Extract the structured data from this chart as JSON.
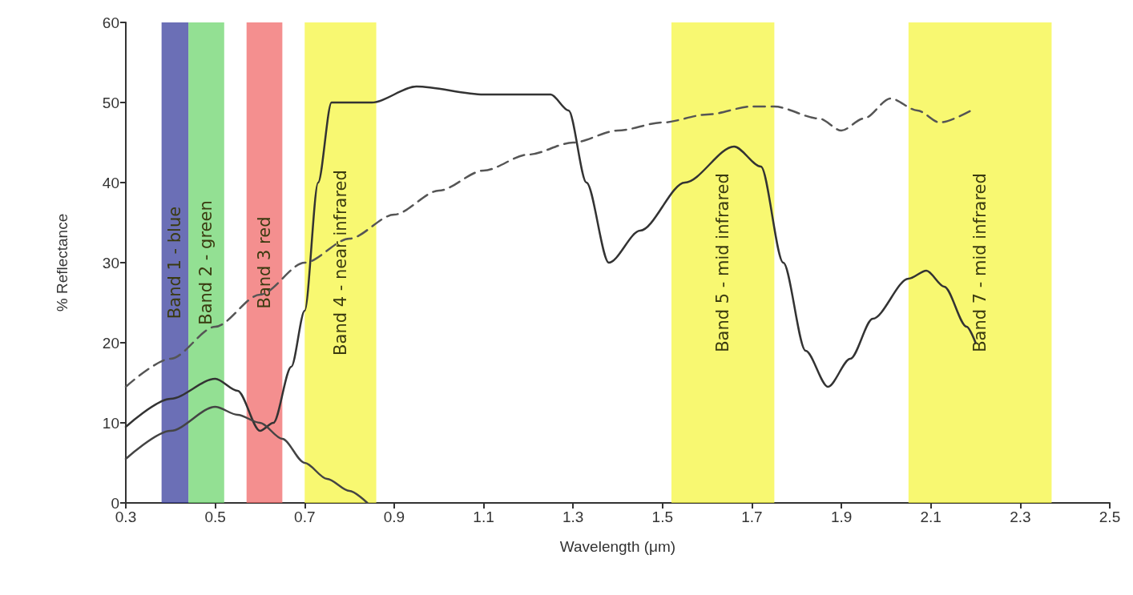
{
  "chart_data": {
    "type": "line",
    "xlabel": "Wavelength (μm)",
    "ylabel": "% Reflectance",
    "xlim": [
      0.3,
      2.5
    ],
    "xticks": [
      0.3,
      0.5,
      0.7,
      0.9,
      1.1,
      1.3,
      1.5,
      1.7,
      1.9,
      2.1,
      2.3,
      2.5
    ],
    "ylim": [
      0,
      60
    ],
    "yticks": [
      0,
      10,
      20,
      30,
      40,
      50,
      60
    ],
    "grid": false,
    "marker": "none",
    "series": [
      {
        "color": "#333333",
        "line_style": "solid",
        "x": [
          0.3,
          0.4,
          0.5,
          0.55,
          0.6,
          0.63,
          0.67,
          0.7,
          0.73,
          0.76,
          0.85,
          0.95,
          1.1,
          1.25,
          1.29,
          1.33,
          1.38,
          1.45,
          1.55,
          1.66,
          1.72,
          1.77,
          1.82,
          1.87,
          1.92,
          1.97,
          2.05,
          2.09,
          2.13,
          2.18,
          2.2
        ],
        "values": [
          9.5,
          13,
          15.5,
          14,
          9,
          10,
          17,
          24,
          40,
          50,
          50,
          52,
          51,
          51,
          49,
          40,
          30,
          34,
          40,
          44.5,
          42,
          30,
          19,
          14.5,
          18,
          23,
          28,
          29,
          27,
          22,
          20
        ]
      },
      {
        "color": "#444444",
        "line_style": "solid",
        "x": [
          0.3,
          0.4,
          0.5,
          0.55,
          0.6,
          0.65,
          0.7,
          0.75,
          0.8,
          0.84
        ],
        "values": [
          5.5,
          9,
          12,
          11,
          10,
          8,
          5,
          3,
          1.5,
          0
        ]
      },
      {
        "color": "#555555",
        "line_style": "dashed",
        "x": [
          0.3,
          0.4,
          0.5,
          0.6,
          0.7,
          0.8,
          0.9,
          1.0,
          1.1,
          1.2,
          1.3,
          1.4,
          1.5,
          1.6,
          1.7,
          1.75,
          1.85,
          1.9,
          1.95,
          2.01,
          2.07,
          2.12,
          2.19
        ],
        "values": [
          14.5,
          18,
          22,
          26,
          30,
          33,
          36,
          39,
          41.5,
          43.5,
          45,
          46.5,
          47.5,
          48.5,
          49.5,
          49.5,
          48,
          46.5,
          48,
          50.5,
          49,
          47.5,
          49
        ]
      }
    ],
    "bands": [
      {
        "axis": "x",
        "from": 0.38,
        "to": 0.44,
        "label": "Band 1 - blue",
        "color": "#3a3f9e"
      },
      {
        "axis": "x",
        "from": 0.44,
        "to": 0.52,
        "label": "Band 2 - green",
        "color": "#6fd66f"
      },
      {
        "axis": "x",
        "from": 0.57,
        "to": 0.65,
        "label": "Band 3 red",
        "color": "#f06a6a"
      },
      {
        "axis": "x",
        "from": 0.7,
        "to": 0.86,
        "label": "Band 4 - near infrared",
        "color": "#f5f542"
      },
      {
        "axis": "x",
        "from": 1.52,
        "to": 1.75,
        "label": "Band 5 - mid infrared",
        "color": "#f5f542"
      },
      {
        "axis": "x",
        "from": 2.05,
        "to": 2.37,
        "label": "Band 7 - mid infrared",
        "color": "#f5f542"
      }
    ]
  }
}
